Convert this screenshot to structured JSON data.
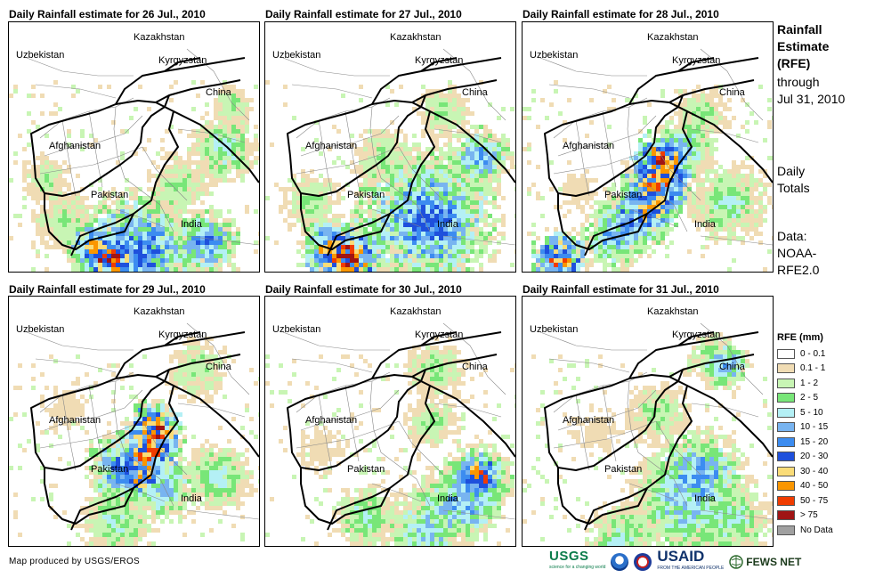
{
  "panels": [
    {
      "title": "Daily Rainfall estimate for 26 Jul., 2010",
      "day": 26
    },
    {
      "title": "Daily Rainfall estimate for 27 Jul., 2010",
      "day": 27
    },
    {
      "title": "Daily Rainfall estimate for 28 Jul., 2010",
      "day": 28
    },
    {
      "title": "Daily Rainfall estimate for 29 Jul., 2010",
      "day": 29
    },
    {
      "title": "Daily Rainfall estimate for 30 Jul., 2010",
      "day": 30
    },
    {
      "title": "Daily Rainfall estimate for 31 Jul., 2010",
      "day": 31
    }
  ],
  "map_labels": {
    "kazakhstan": "Kazakhstan",
    "uzbekistan": "Uzbekistan",
    "kyrgyzstan": "Kyrgyzstan",
    "china": "China",
    "afghanistan": "Afghanistan",
    "pakistan": "Pakistan",
    "india": "India"
  },
  "side_info": {
    "title_line1": "Rainfall",
    "title_line2": "Estimate",
    "title_line3": "(RFE)",
    "through": "through",
    "date": "Jul 31, 2010",
    "daily_line1": "Daily",
    "daily_line2": "Totals",
    "data_line1": "Data:",
    "data_line2": "NOAA-",
    "data_line3": "RFE2.0"
  },
  "legend": {
    "title": "RFE (mm)",
    "items": [
      {
        "label": "0 - 0.1",
        "color": "#ffffff"
      },
      {
        "label": "0.1 - 1",
        "color": "#f0dcb4"
      },
      {
        "label": "1 - 2",
        "color": "#c8f5b4"
      },
      {
        "label": "2 - 5",
        "color": "#78e678"
      },
      {
        "label": "5 - 10",
        "color": "#b4f0f5"
      },
      {
        "label": "10 - 15",
        "color": "#78b4f0"
      },
      {
        "label": "15 - 20",
        "color": "#3c8cf0"
      },
      {
        "label": "20 - 30",
        "color": "#1e50dc"
      },
      {
        "label": "30 - 40",
        "color": "#fadc78"
      },
      {
        "label": "40 - 50",
        "color": "#fa9600"
      },
      {
        "label": "50 - 75",
        "color": "#f03c00"
      },
      {
        "label": "> 75",
        "color": "#a01414"
      },
      {
        "label": "No Data",
        "color": "#a0a0a0"
      }
    ]
  },
  "credit": "Map produced by USGS/EROS",
  "logos": {
    "usgs": "USGS",
    "usgs_tagline": "science for a changing world",
    "usaid": "USAID",
    "usaid_tagline": "FROM THE AMERICAN PEOPLE",
    "fews": "FEWS NET"
  }
}
